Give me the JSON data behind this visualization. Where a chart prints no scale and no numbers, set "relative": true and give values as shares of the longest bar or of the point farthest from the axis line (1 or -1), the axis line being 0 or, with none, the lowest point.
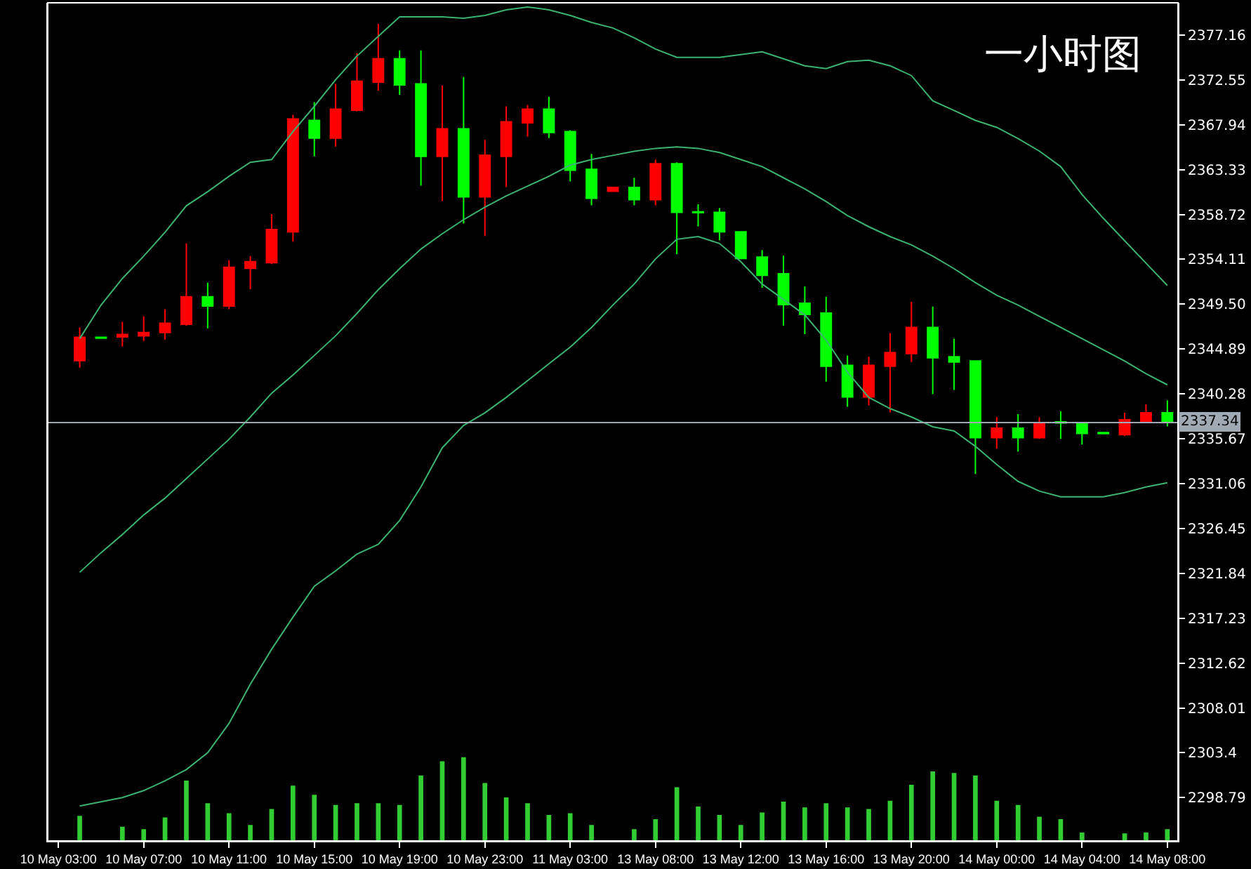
{
  "chart_data": [
    {
      "type": "candlestick",
      "categories": [
        "10 May 03:00",
        null,
        null,
        null,
        "10 May 07:00",
        null,
        null,
        null,
        "10 May 11:00",
        null,
        null,
        null,
        "10 May 15:00",
        null,
        null,
        null,
        "10 May 19:00",
        null,
        null,
        null,
        "10 May 23:00",
        null,
        null,
        null,
        "11 May 03:00",
        null,
        null,
        null,
        "13 May 08:00",
        null,
        null,
        null,
        "13 May 12:00",
        null,
        null,
        null,
        "13 May 16:00",
        null,
        null,
        null,
        "13 May 20:00",
        null,
        null,
        null,
        "14 May 00:00",
        null,
        null,
        null,
        "14 May 04:00",
        null,
        null,
        null,
        "14 May 08:00"
      ],
      "ohlc": [
        null,
        [
          2343.7,
          2347.11,
          2342.98,
          2346.1
        ],
        [
          2346.1,
          2346.1,
          2346.0,
          2346.0
        ],
        [
          2346.14,
          2347.68,
          2345.14,
          2346.39
        ],
        [
          2346.25,
          2348.26,
          2345.71,
          2346.58
        ],
        [
          2346.58,
          2348.98,
          2345.86,
          2347.54
        ],
        [
          2347.44,
          2355.74,
          2347.29,
          2350.27
        ],
        [
          2350.27,
          2351.71,
          2347.01,
          2349.31
        ],
        [
          2349.31,
          2354.01,
          2348.98,
          2353.29
        ],
        [
          2353.19,
          2354.44,
          2351.03,
          2353.87
        ],
        [
          2353.77,
          2358.75,
          2353.62,
          2357.17
        ],
        [
          2356.93,
          2368.96,
          2355.92,
          2368.53
        ],
        [
          2368.39,
          2370.26,
          2364.69,
          2366.56
        ],
        [
          2366.56,
          2372.13,
          2365.7,
          2369.54
        ],
        [
          2369.44,
          2375.29,
          2369.3,
          2372.41
        ],
        [
          2372.31,
          2378.31,
          2371.45,
          2374.72
        ],
        [
          2374.72,
          2375.58,
          2371.02,
          2372.03
        ],
        [
          2372.13,
          2375.58,
          2361.67,
          2364.69
        ],
        [
          2364.69,
          2371.98,
          2360.09,
          2367.53
        ],
        [
          2367.53,
          2372.85,
          2357.79,
          2360.52
        ],
        [
          2360.52,
          2366.38,
          2356.5,
          2364.79
        ],
        [
          2364.69,
          2369.83,
          2361.53,
          2368.25
        ],
        [
          2368.14,
          2369.97,
          2366.71,
          2369.54
        ],
        [
          2369.54,
          2370.83,
          2366.56,
          2367.14
        ],
        [
          2367.24,
          2367.38,
          2362.11,
          2363.26
        ],
        [
          2363.36,
          2364.94,
          2359.66,
          2360.38
        ],
        [
          2361.1,
          2361.49,
          2361.1,
          2361.49
        ],
        [
          2361.49,
          2362.49,
          2359.66,
          2360.24
        ],
        [
          2360.24,
          2364.36,
          2359.66,
          2363.93
        ],
        [
          2363.93,
          2364.07,
          2354.63,
          2358.94
        ],
        [
          2359.0,
          2359.76,
          2357.5,
          2358.9
        ],
        [
          2358.94,
          2359.37,
          2356.07,
          2356.93
        ],
        [
          2356.93,
          2356.93,
          2354.2,
          2354.2
        ],
        [
          2354.34,
          2355.06,
          2351.18,
          2352.47
        ],
        [
          2352.62,
          2354.48,
          2347.29,
          2349.45
        ],
        [
          2349.6,
          2351.32,
          2346.43,
          2348.45
        ],
        [
          2348.59,
          2350.27,
          2341.54,
          2343.12
        ],
        [
          2343.22,
          2344.23,
          2338.96,
          2339.96
        ],
        [
          2339.96,
          2344.09,
          2339.1,
          2343.22
        ],
        [
          2343.12,
          2346.53,
          2338.38,
          2344.52
        ],
        [
          2344.42,
          2349.74,
          2343.56,
          2347.11
        ],
        [
          2347.11,
          2349.26,
          2340.25,
          2343.99
        ],
        [
          2344.09,
          2345.96,
          2340.68,
          2343.56
        ],
        [
          2343.66,
          2343.66,
          2332.05,
          2335.79
        ],
        [
          2335.79,
          2337.9,
          2334.64,
          2336.75
        ],
        [
          2336.75,
          2338.19,
          2334.35,
          2335.79
        ],
        [
          2335.79,
          2337.9,
          2335.65,
          2337.33
        ],
        [
          2337.4,
          2338.48,
          2335.65,
          2337.3
        ],
        [
          2337.33,
          2337.33,
          2335.07,
          2336.22
        ],
        [
          2336.3,
          2336.3,
          2336.2,
          2336.2
        ],
        [
          2336.08,
          2338.34,
          2335.94,
          2337.62
        ],
        [
          2337.47,
          2339.2,
          2337.47,
          2338.34
        ],
        [
          2338.34,
          2339.63,
          2336.94,
          2337.34
        ]
      ],
      "colors": [
        null,
        "#ff0000",
        "#00ff00",
        "#ff0000",
        "#ff0000",
        "#ff0000",
        "#ff0000",
        "#00ff00",
        "#ff0000",
        "#ff0000",
        "#ff0000",
        "#ff0000",
        "#00ff00",
        "#ff0000",
        "#ff0000",
        "#ff0000",
        "#00ff00",
        "#00ff00",
        "#ff0000",
        "#00ff00",
        "#ff0000",
        "#ff0000",
        "#ff0000",
        "#00ff00",
        "#00ff00",
        "#00ff00",
        "#ff0000",
        "#00ff00",
        "#ff0000",
        "#00ff00",
        "#00ff00",
        "#00ff00",
        "#00ff00",
        "#00ff00",
        "#00ff00",
        "#00ff00",
        "#00ff00",
        "#00ff00",
        "#ff0000",
        "#ff0000",
        "#ff0000",
        "#00ff00",
        "#00ff00",
        "#00ff00",
        "#ff0000",
        "#00ff00",
        "#ff0000",
        "#00ff00",
        "#00ff00",
        "#00ff00",
        "#ff0000",
        "#ff0000",
        "#00ff00"
      ],
      "series": [
        {
          "type": "line",
          "color": "#3cb371",
          "values": [
            null,
            2345.96,
            2349.41,
            2352.14,
            2354.44,
            2356.89,
            2359.62,
            2361.06,
            2362.64,
            2364.08,
            2364.36,
            2367.24,
            2369.83,
            2372.56,
            2375.0,
            2377.02,
            2379.03,
            2379.03,
            2379.03,
            2378.89,
            2379.17,
            2379.75,
            2380.04,
            2379.75,
            2379.17,
            2378.45,
            2377.88,
            2376.87,
            2375.72,
            2374.86,
            2374.86,
            2374.86,
            2375.15,
            2375.43,
            2374.72,
            2374.0,
            2373.71,
            2374.43,
            2374.57,
            2374.0,
            2372.99,
            2370.4,
            2369.4,
            2368.39,
            2367.67,
            2366.52,
            2365.23,
            2363.64,
            2360.77,
            2358.32,
            2356.02,
            2353.72,
            2351.42
          ]
        },
        {
          "type": "line",
          "color": "#3cb371",
          "values": [
            null,
            2321.94,
            2323.96,
            2325.83,
            2327.84,
            2329.57,
            2331.58,
            2333.59,
            2335.61,
            2337.91,
            2340.35,
            2342.22,
            2344.23,
            2346.25,
            2348.55,
            2350.99,
            2353.15,
            2355.16,
            2356.74,
            2358.18,
            2359.47,
            2360.62,
            2361.63,
            2362.64,
            2363.79,
            2364.36,
            2364.79,
            2365.22,
            2365.51,
            2365.66,
            2365.51,
            2365.08,
            2364.36,
            2363.64,
            2362.49,
            2361.34,
            2360.05,
            2358.61,
            2357.46,
            2356.45,
            2355.59,
            2354.44,
            2353.15,
            2351.71,
            2350.42,
            2349.41,
            2348.26,
            2347.11,
            2345.96,
            2344.81,
            2343.66,
            2342.36,
            2341.21
          ]
        },
        {
          "type": "line",
          "color": "#3cb371",
          "values": [
            null,
            2297.93,
            2298.36,
            2298.79,
            2299.51,
            2300.52,
            2301.67,
            2303.4,
            2306.41,
            2310.44,
            2314.04,
            2317.34,
            2320.51,
            2322.09,
            2323.81,
            2324.82,
            2327.26,
            2330.72,
            2334.74,
            2337.04,
            2338.34,
            2339.92,
            2341.64,
            2343.37,
            2345.09,
            2347.11,
            2349.41,
            2351.57,
            2354.15,
            2356.17,
            2356.45,
            2355.74,
            2353.87,
            2351.57,
            2349.98,
            2348.4,
            2345.81,
            2342.51,
            2339.92,
            2338.77,
            2337.91,
            2336.9,
            2336.47,
            2334.89,
            2333.02,
            2331.29,
            2330.29,
            2329.71,
            2329.71,
            2329.71,
            2330.14,
            2330.72,
            2331.15
          ]
        }
      ],
      "ylim": [
        2294.34,
        2380.47
      ],
      "yticks": [
        2298.79,
        2303.4,
        2308.01,
        2312.62,
        2317.23,
        2321.84,
        2326.45,
        2331.06,
        2335.67,
        2340.28,
        2344.89,
        {
          "value": 2349.5,
          "label": "2349.50"
        },
        2354.11,
        2358.72,
        2363.33,
        2367.94,
        2372.55,
        2377.16
      ],
      "ref_lines": [
        {
          "axis": "y",
          "value": 2337.34,
          "label": "2337.34",
          "color": "#a0aab4"
        }
      ],
      "annotations": [
        "一小时图"
      ],
      "grid": false
    },
    {
      "type": "bar",
      "relative": true,
      "color": "#32cd32",
      "values": [
        null,
        0.3,
        0,
        0.17,
        0.14,
        0.28,
        0.72,
        0.45,
        0.33,
        0.19,
        0.38,
        0.66,
        0.55,
        0.43,
        0.45,
        0.45,
        0.43,
        0.78,
        0.95,
        1,
        0.69,
        0.52,
        0.45,
        0.31,
        0.33,
        0.19,
        0,
        0.14,
        0.26,
        0.64,
        0.41,
        0.31,
        0.19,
        0.34,
        0.47,
        0.4,
        0.45,
        0.4,
        0.38,
        0.48,
        0.67,
        0.83,
        0.81,
        0.78,
        0.48,
        0.43,
        0.29,
        0.26,
        0.1,
        0,
        0.09,
        0.1,
        0.14
      ]
    }
  ]
}
